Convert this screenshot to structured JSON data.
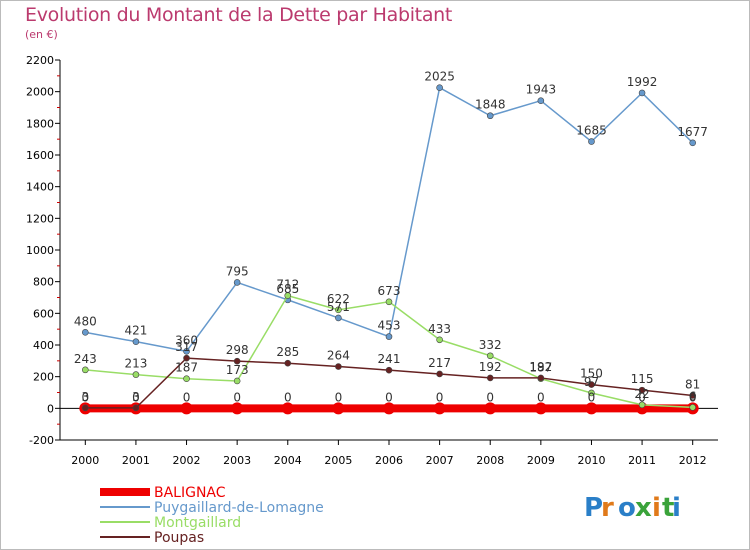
{
  "header": {
    "title": "Evolution du Montant de la Dette par Habitant",
    "subtitle": "(en €)"
  },
  "logo": {
    "text": "Proxiti"
  },
  "chart_data": {
    "type": "line",
    "title": "Evolution du Montant de la Dette par Habitant",
    "subtitle": "(en €)",
    "xlabel": "",
    "ylabel": "",
    "x": [
      2000,
      2001,
      2002,
      2003,
      2004,
      2005,
      2006,
      2007,
      2008,
      2009,
      2010,
      2011,
      2012
    ],
    "ylim": [
      -200,
      2200
    ],
    "yticks": [
      -200,
      0,
      200,
      400,
      600,
      800,
      1000,
      1200,
      1400,
      1600,
      1800,
      2000,
      2200
    ],
    "grid": false,
    "legend_position": "bottom-left",
    "series": [
      {
        "name": "BALIGNAC",
        "color": "#ee0000",
        "values": [
          0,
          0,
          0,
          0,
          0,
          0,
          0,
          0,
          0,
          0,
          0,
          0,
          0
        ]
      },
      {
        "name": "Puygaillard-de-Lomagne",
        "color": "#6699cc",
        "values": [
          480,
          421,
          360,
          795,
          685,
          571,
          453,
          2025,
          1848,
          1943,
          1685,
          1992,
          1677
        ]
      },
      {
        "name": "Montgaillard",
        "color": "#99dd66",
        "values": [
          243,
          213,
          187,
          173,
          712,
          622,
          673,
          433,
          332,
          187,
          97,
          22,
          6
        ]
      },
      {
        "name": "Poupas",
        "color": "#662222",
        "values": [
          3,
          3,
          317,
          298,
          285,
          264,
          241,
          217,
          192,
          192,
          150,
          115,
          81
        ]
      }
    ]
  }
}
